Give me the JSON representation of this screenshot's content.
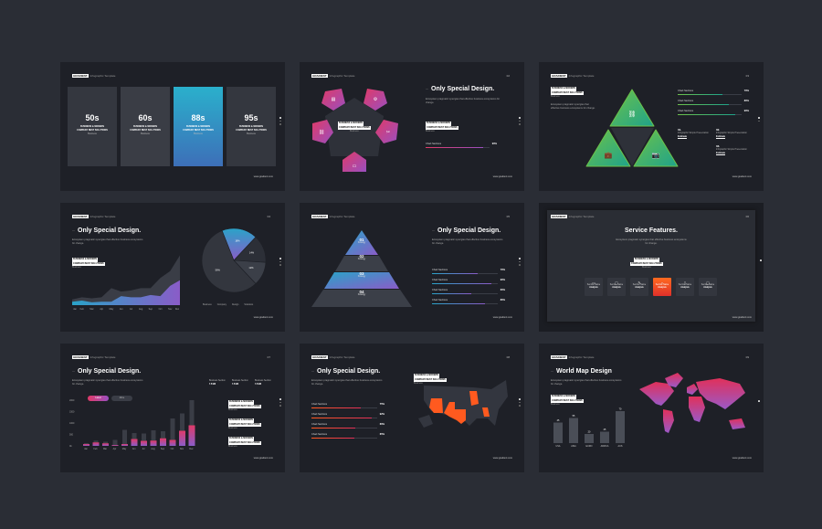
{
  "common": {
    "brand": "GRADIENT",
    "subtitle": "Infographic Template",
    "url": "www.gradient.com",
    "company_line1": "BUSINESS & MODERN",
    "company_line2": "COMPANY BEST SOLUTIONS",
    "business": "Business",
    "desc": "Ecosystem pragmatic synergies that effective business ecosystems for change.",
    "colors": {
      "background": "#2a2d35",
      "slide": "#1e2027",
      "pink": "#e03a68",
      "purple": "#8a5cc8",
      "blue": "#2aa3c8",
      "green": "#3fb86a",
      "orange": "#ff5a1f"
    }
  },
  "slides": [
    {
      "page": "01",
      "cards": [
        {
          "value": "50s"
        },
        {
          "value": "60s"
        },
        {
          "value": "88s"
        },
        {
          "value": "95s"
        }
      ]
    },
    {
      "page": "02",
      "title": "Only Special Design.",
      "icons": [
        "document-icon",
        "gear-icon",
        "tools-icon",
        "folder-icon",
        "link-icon"
      ],
      "bar": {
        "label": "Chart Sections",
        "value": "90%",
        "fill": 0.9
      }
    },
    {
      "page": "03",
      "icons": [
        "link-icon",
        "briefcase-icon",
        "camera-icon"
      ],
      "bars": [
        {
          "label": "Chart Sections",
          "value": "70%",
          "fill": 0.7
        },
        {
          "label": "Chart Sections",
          "value": "80%",
          "fill": 0.8
        },
        {
          "label": "Chart Sections",
          "value": "90%",
          "fill": 0.9
        }
      ],
      "items": [
        {
          "num": "01.",
          "text": "Infographic Simple Presentation",
          "sub": "Estimate"
        },
        {
          "num": "02.",
          "text": "Infographic Simple Presentation",
          "sub": "Estimate"
        },
        {
          "num": "03.",
          "text": "Infographic Simple Presentation",
          "sub": "Estimate"
        }
      ]
    },
    {
      "page": "04",
      "title": "Only Special Design."
    },
    {
      "page": "05",
      "title": "Only Special Design.",
      "levels": [
        {
          "num": "01",
          "text": "Strategy"
        },
        {
          "num": "02",
          "text": "Strategy"
        },
        {
          "num": "03",
          "text": "Strategy"
        },
        {
          "num": "04",
          "text": "Strategy"
        }
      ],
      "bars": [
        {
          "label": "Chart Sections",
          "value": "70%",
          "fill": 0.7
        },
        {
          "label": "Chart Sections",
          "value": "90%",
          "fill": 0.9
        },
        {
          "label": "Chart Sections",
          "value": "60%",
          "fill": 0.6
        },
        {
          "label": "Chart Sections",
          "value": "80%",
          "fill": 0.8
        }
      ]
    },
    {
      "page": "06",
      "title": "Service Features.",
      "services": [
        {
          "label": "Service Name",
          "sub": "Analysis",
          "icon": "folder-icon"
        },
        {
          "label": "Service Name",
          "sub": "Analysis",
          "icon": "monitor-icon"
        },
        {
          "label": "Service Name",
          "sub": "Analysis",
          "icon": "pen-icon"
        },
        {
          "label": "Service Name",
          "sub": "Analysis",
          "icon": "search-icon",
          "active": true
        },
        {
          "label": "Service Name",
          "sub": "Analysis",
          "icon": "book-icon"
        },
        {
          "label": "Service Name",
          "sub": "Analysis",
          "icon": "globe-icon"
        }
      ]
    },
    {
      "page": "07",
      "title": "Only Special Design.",
      "legend": [
        "Latest",
        "More"
      ],
      "stats": [
        {
          "label": "Business Section",
          "value": "7.5438"
        },
        {
          "label": "Business Section",
          "value": "7.5438"
        },
        {
          "label": "Business Section",
          "value": "7.5438"
        }
      ],
      "notes": [
        {
          "sub": "Business"
        },
        {
          "sub": "Business"
        },
        {
          "sub": "Business"
        }
      ]
    },
    {
      "page": "08",
      "title": "Only Special Design.",
      "bars": [
        {
          "label": "Chart Sections",
          "value": "75%",
          "fill": 0.75
        },
        {
          "label": "Chart Sections",
          "value": "92%",
          "fill": 0.92
        },
        {
          "label": "Chart Sections",
          "value": "66%",
          "fill": 0.66
        },
        {
          "label": "Chart Sections",
          "value": "65%",
          "fill": 0.65
        }
      ]
    },
    {
      "page": "09",
      "title": "World Map Design"
    }
  ],
  "chart_data": [
    {
      "type": "area",
      "categories": [
        "Jan",
        "Feb",
        "Mar",
        "Apr",
        "May",
        "Jun",
        "Jul",
        "Aug",
        "Sep",
        "Oct",
        "Nov",
        "Dec"
      ],
      "series": [
        {
          "values": [
            10,
            14,
            12,
            14,
            30,
            24,
            26,
            30,
            30,
            48,
            60,
            88
          ]
        },
        {
          "values": [
            6,
            8,
            5,
            6,
            6,
            16,
            14,
            14,
            18,
            16,
            34,
            44
          ]
        }
      ]
    },
    {
      "type": "pie",
      "values": [
        18,
        14,
        12,
        56
      ],
      "labels": [
        "18%",
        "14%",
        "12%",
        "56%"
      ],
      "legend": [
        "Business",
        "Company",
        "Design",
        "Solutions"
      ]
    },
    {
      "type": "bar",
      "categories": [
        "Jan",
        "Feb",
        "Mar",
        "Apr",
        "May",
        "Jun",
        "Jul",
        "Aug",
        "Sep",
        "Oct",
        "Nov",
        "Dec"
      ],
      "yticks": [
        "0k",
        "500",
        "1000",
        "1500",
        "2000"
      ],
      "ylim": [
        0,
        2000
      ],
      "series": [
        {
          "name": "Latest",
          "values": [
            80,
            150,
            110,
            40,
            80,
            300,
            220,
            230,
            330,
            260,
            660,
            900
          ]
        },
        {
          "name": "More",
          "values": [
            120,
            230,
            180,
            260,
            700,
            560,
            540,
            680,
            640,
            1200,
            1420,
            2000
          ]
        }
      ]
    },
    {
      "type": "bar",
      "categories": [
        "USA",
        "ASIA",
        "EURO",
        "AFRICA",
        "AUS"
      ],
      "values": [
        45,
        55,
        20,
        25,
        70
      ],
      "labels": [
        "45",
        "55",
        "20",
        "25",
        "70"
      ]
    }
  ]
}
